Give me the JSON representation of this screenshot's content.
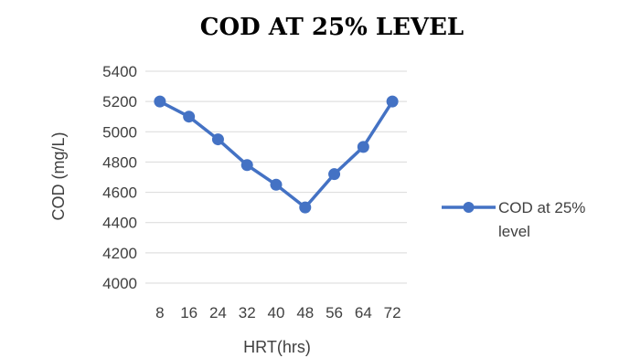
{
  "chart_data": {
    "type": "line",
    "title": "COD AT 25% LEVEL",
    "xlabel": "HRT(hrs)",
    "ylabel": "COD (mg/L)",
    "categories": [
      "8",
      "16",
      "24",
      "32",
      "40",
      "48",
      "56",
      "64",
      "72"
    ],
    "series": [
      {
        "name": "COD at 25% level",
        "values": [
          5200,
          5100,
          4950,
          4780,
          4650,
          4500,
          4720,
          4900,
          5200
        ]
      }
    ],
    "ylim": [
      4000,
      5400
    ],
    "yticks": [
      4000,
      4200,
      4400,
      4600,
      4800,
      5000,
      5200,
      5400
    ],
    "grid": true,
    "legend": "right",
    "colors": {
      "series": "#4472c4",
      "grid": "#d9d9d9",
      "text": "#404040"
    }
  }
}
